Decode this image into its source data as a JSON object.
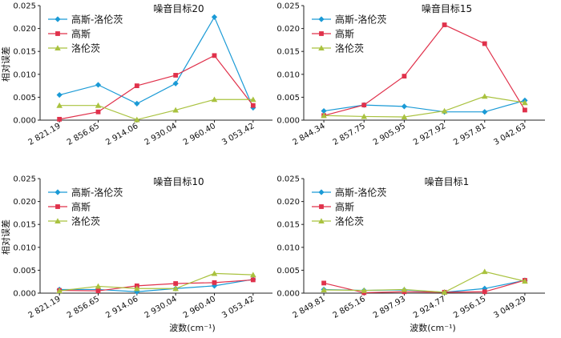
{
  "figure": {
    "ylabel": "相对误差",
    "xlabel": "波数(cm⁻¹)"
  },
  "chart_data": [
    {
      "type": "line",
      "title": "噪音目标20",
      "categories": [
        "2 821.19",
        "2 856.65",
        "2 914.06",
        "2 930.04",
        "2 960.40",
        "3 053.42"
      ],
      "ylim": [
        0,
        0.025
      ],
      "yticks": [
        "0.000",
        "0.005",
        "0.010",
        "0.015",
        "0.020",
        "0.025"
      ],
      "ylabel": "相对误差",
      "xlabel": "",
      "series": [
        {
          "name": "高斯-洛伦茨",
          "color": "#1a9ad6",
          "marker": "diamond",
          "values": [
            0.0055,
            0.0077,
            0.0036,
            0.008,
            0.0225,
            0.0027
          ]
        },
        {
          "name": "高斯",
          "color": "#e0314b",
          "marker": "square",
          "values": [
            0.0002,
            0.0018,
            0.0075,
            0.0098,
            0.0141,
            0.0032
          ]
        },
        {
          "name": "洛伦茨",
          "color": "#a9c23f",
          "marker": "triangle",
          "values": [
            0.0032,
            0.0032,
            0.0001,
            0.0022,
            0.0045,
            0.0045
          ]
        }
      ]
    },
    {
      "type": "line",
      "title": "噪音目标15",
      "categories": [
        "2 844.34",
        "2 857.75",
        "2 905.95",
        "2 927.92",
        "2 957.81",
        "3 042.63"
      ],
      "ylim": [
        0,
        0.025
      ],
      "yticks": [
        "0.000",
        "0.005",
        "0.010",
        "0.015",
        "0.020",
        "0.025"
      ],
      "ylabel": "",
      "xlabel": "",
      "series": [
        {
          "name": "高斯-洛伦茨",
          "color": "#1a9ad6",
          "marker": "diamond",
          "values": [
            0.002,
            0.0033,
            0.003,
            0.0018,
            0.0018,
            0.0043
          ]
        },
        {
          "name": "高斯",
          "color": "#e0314b",
          "marker": "square",
          "values": [
            0.001,
            0.0033,
            0.0096,
            0.0208,
            0.0167,
            0.0022
          ]
        },
        {
          "name": "洛伦茨",
          "color": "#a9c23f",
          "marker": "triangle",
          "values": [
            0.001,
            0.0008,
            0.0007,
            0.002,
            0.0052,
            0.0038
          ]
        }
      ]
    },
    {
      "type": "line",
      "title": "噪音目标10",
      "categories": [
        "2 821.19",
        "2 856.65",
        "2 914.06",
        "2 930.04",
        "2 960.40",
        "3 053.42"
      ],
      "ylim": [
        0,
        0.025
      ],
      "yticks": [
        "0.000",
        "0.005",
        "0.010",
        "0.015",
        "0.020",
        "0.025"
      ],
      "ylabel": "相对误差",
      "xlabel": "",
      "series": [
        {
          "name": "高斯-洛伦茨",
          "color": "#1a9ad6",
          "marker": "diamond",
          "values": [
            0.0008,
            0.0008,
            0.0003,
            0.001,
            0.0016,
            0.003
          ]
        },
        {
          "name": "高斯",
          "color": "#e0314b",
          "marker": "square",
          "values": [
            0.0006,
            0.0005,
            0.0016,
            0.0021,
            0.0023,
            0.0029
          ]
        },
        {
          "name": "洛伦茨",
          "color": "#a9c23f",
          "marker": "triangle",
          "values": [
            0.0005,
            0.0015,
            0.001,
            0.001,
            0.0043,
            0.004
          ]
        }
      ]
    },
    {
      "type": "line",
      "title": "噪音目标1",
      "categories": [
        "2 849.81",
        "2 865.16",
        "2 897.93",
        "2 924.77",
        "2 956.15",
        "3 049.29"
      ],
      "ylim": [
        0,
        0.025
      ],
      "yticks": [
        "0.000",
        "0.005",
        "0.010",
        "0.015",
        "0.020",
        "0.025"
      ],
      "ylabel": "",
      "xlabel": "",
      "series": [
        {
          "name": "高斯-洛伦茨",
          "color": "#1a9ad6",
          "marker": "diamond",
          "values": [
            0.0008,
            0.0006,
            0.0007,
            0.0002,
            0.001,
            0.0028
          ]
        },
        {
          "name": "高斯",
          "color": "#e0314b",
          "marker": "square",
          "values": [
            0.0022,
            0.0001,
            0.0003,
            0.0002,
            0.0003,
            0.0028
          ]
        },
        {
          "name": "洛伦茨",
          "color": "#a9c23f",
          "marker": "triangle",
          "values": [
            0.0007,
            0.0006,
            0.0008,
            0.0002,
            0.0047,
            0.0026
          ]
        }
      ]
    }
  ]
}
